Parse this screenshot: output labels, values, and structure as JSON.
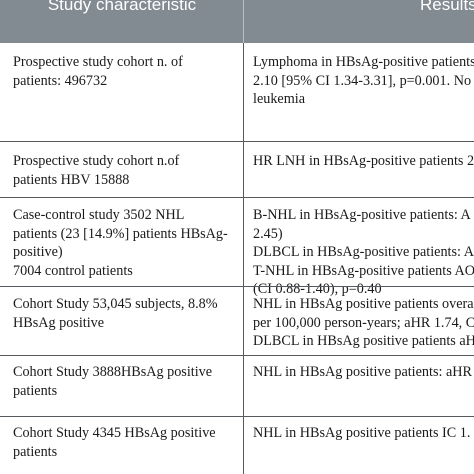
{
  "table": {
    "headers": [
      "Study characteristic",
      "Results"
    ],
    "rows": [
      {
        "characteristic": [
          "Prospective study cohort n. of",
          "patients: 496732"
        ],
        "results": [
          "Lymphoma in HBsAg-positive patients",
          "2.10 [95% CI 1.34-3.31], p=0.001. No",
          "leukemia"
        ]
      },
      {
        "characteristic": [
          "Prospective study cohort n.of",
          "patients HBV 15888"
        ],
        "results": [
          "HR LNH in HBsAg-positive patients 2"
        ]
      },
      {
        "characteristic": [
          "Case-control study 3502 NHL",
          "patients (23 [14.9%] patients HBsAg-",
          "positive)",
          "7004 control patients"
        ],
        "results": [
          "B-NHL in HBsAg-positive patients: A",
          "2.45)",
          "DLBCL in HBsAg-positive patients: A",
          "T-NHL in HBsAg-positive patients AO",
          "(CI 0.88-1.40), p=0.40"
        ]
      },
      {
        "characteristic": [
          "Cohort Study 53,045 subjects, 8.8%",
          "HBsAg positive"
        ],
        "results": [
          "NHL in HBsAg positive patients overa",
          "per 100,000 person-years; aHR 1.74, C",
          "DLBCL in HBsAg positive patients aH"
        ]
      },
      {
        "characteristic": [
          "Cohort Study 3888HBsAg positive",
          "patients"
        ],
        "results": [
          "NHL in HBsAg positive patients: aHR"
        ]
      },
      {
        "characteristic": [
          "Cohort Study 4345 HBsAg positive",
          "patients"
        ],
        "results": [
          "NHL in HBsAg positive patients IC 1."
        ]
      }
    ]
  }
}
